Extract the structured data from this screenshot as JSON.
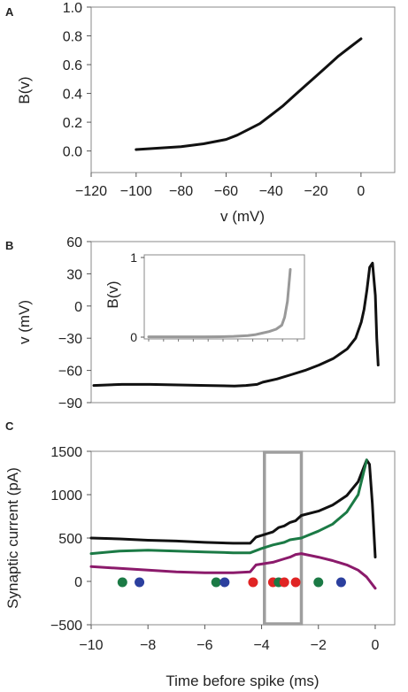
{
  "chart_data": [
    {
      "panel": "A",
      "type": "line",
      "title": "",
      "xlabel": "v (mV)",
      "ylabel": "B(v)",
      "xlim": [
        -120,
        15
      ],
      "ylim": [
        -0.15,
        1.0
      ],
      "xticks": [
        -120,
        -100,
        -80,
        -60,
        -40,
        -20,
        0
      ],
      "yticks": [
        0.0,
        0.2,
        0.4,
        0.6,
        0.8,
        1.0
      ],
      "xtick_labels": [
        "-120",
        "-100",
        "-80",
        "-60",
        "-40",
        "-20",
        "0"
      ],
      "ytick_labels": [
        "0.0",
        "0.2",
        "0.4",
        "0.6",
        "0.8",
        "1.0"
      ],
      "grid": false,
      "series": [
        {
          "color": "#111111",
          "x": [
            -100,
            -90,
            -80,
            -70,
            -60,
            -55,
            -50,
            -45,
            -40,
            -35,
            -30,
            -25,
            -20,
            -15,
            -10,
            -5,
            0
          ],
          "y": [
            0.01,
            0.02,
            0.03,
            0.05,
            0.08,
            0.11,
            0.15,
            0.19,
            0.25,
            0.31,
            0.38,
            0.45,
            0.52,
            0.59,
            0.66,
            0.72,
            0.78
          ]
        }
      ]
    },
    {
      "panel": "B",
      "type": "line",
      "title": "",
      "xlabel": "",
      "ylabel": "v (mV)",
      "xlim": [
        -10,
        0.5
      ],
      "ylim": [
        -90,
        60
      ],
      "yticks": [
        -90,
        -60,
        -30,
        0,
        30,
        60
      ],
      "ytick_labels": [
        "-90",
        "-60",
        "-30",
        "0",
        "30",
        "60"
      ],
      "grid": false,
      "series": [
        {
          "color": "#111111",
          "x": [
            -10,
            -9,
            -8,
            -7,
            -6,
            -5,
            -4.6,
            -4.2,
            -4,
            -3.5,
            -3,
            -2.5,
            -2,
            -1.5,
            -1,
            -0.7,
            -0.5,
            -0.4,
            -0.3,
            -0.2,
            -0.1,
            0,
            0.05,
            0.1
          ],
          "y": [
            -74,
            -73,
            -73,
            -73.5,
            -74,
            -74.5,
            -74,
            -73,
            -71,
            -68,
            -64,
            -60,
            -55,
            -49,
            -40,
            -30,
            -15,
            -3,
            15,
            36,
            40,
            10,
            -30,
            -55
          ]
        }
      ],
      "inset": {
        "ylabel": "B(v)",
        "ylim": [
          0,
          1
        ],
        "yticks": [
          0,
          1
        ],
        "ytick_labels": [
          "0",
          "1"
        ],
        "xlim": [
          -10,
          0.5
        ],
        "series": [
          {
            "color": "#999999",
            "x": [
              -10,
              -8,
              -6,
              -5,
              -4,
              -3,
              -2.5,
              -2,
              -1.5,
              -1,
              -0.6,
              -0.4,
              -0.2,
              0
            ],
            "y": [
              0.005,
              0.005,
              0.005,
              0.006,
              0.01,
              0.02,
              0.03,
              0.05,
              0.07,
              0.1,
              0.15,
              0.25,
              0.45,
              0.85
            ]
          }
        ]
      }
    },
    {
      "panel": "C",
      "type": "line",
      "title": "",
      "xlabel": "Time before spike (ms)",
      "ylabel": "Synaptic current (pA)",
      "xlim": [
        -10,
        0.5
      ],
      "ylim": [
        -500,
        1500
      ],
      "xticks": [
        -10,
        -8,
        -6,
        -4,
        -2,
        0
      ],
      "yticks": [
        -500,
        0,
        500,
        1000,
        1500
      ],
      "xtick_labels": [
        "-10",
        "-8",
        "-6",
        "-4",
        "-2",
        "0"
      ],
      "ytick_labels": [
        "-500",
        "0",
        "500",
        "1000",
        "1500"
      ],
      "grid": false,
      "series": [
        {
          "color": "#111111",
          "x": [
            -10,
            -9,
            -8,
            -7,
            -6,
            -5,
            -4.4,
            -4.2,
            -4.0,
            -3.8,
            -3.6,
            -3.4,
            -3.2,
            -3.0,
            -2.8,
            -2.6,
            -2.0,
            -1.5,
            -1.0,
            -0.6,
            -0.3,
            -0.2,
            -0.1,
            0
          ],
          "y": [
            500,
            490,
            475,
            465,
            450,
            440,
            440,
            510,
            530,
            550,
            570,
            620,
            640,
            680,
            700,
            760,
            810,
            880,
            990,
            1150,
            1400,
            1350,
            900,
            280
          ]
        },
        {
          "color": "#1b7a45",
          "x": [
            -10,
            -9,
            -8,
            -7,
            -6,
            -5,
            -4.4,
            -4.0,
            -3.6,
            -3.2,
            -3.0,
            -2.6,
            -2.0,
            -1.5,
            -1.0,
            -0.6,
            -0.3
          ],
          "y": [
            320,
            350,
            360,
            350,
            340,
            330,
            330,
            380,
            420,
            450,
            480,
            500,
            580,
            660,
            800,
            1000,
            1400
          ]
        },
        {
          "color": "#8b1a6b",
          "x": [
            -10,
            -9,
            -8,
            -7,
            -6,
            -5,
            -4.4,
            -4.2,
            -4.0,
            -3.6,
            -3.2,
            -3.0,
            -2.8,
            -2.6,
            -2.0,
            -1.5,
            -1.0,
            -0.6,
            -0.3,
            0
          ],
          "y": [
            170,
            150,
            130,
            110,
            100,
            100,
            110,
            190,
            200,
            220,
            260,
            280,
            310,
            320,
            280,
            240,
            190,
            130,
            50,
            -80
          ]
        }
      ],
      "markers": [
        {
          "x": -8.9,
          "y": -10,
          "color": "#1b7a45"
        },
        {
          "x": -8.3,
          "y": -10,
          "color": "#2b3f9e"
        },
        {
          "x": -5.6,
          "y": -10,
          "color": "#1b7a45"
        },
        {
          "x": -5.3,
          "y": -10,
          "color": "#2b3f9e"
        },
        {
          "x": -4.3,
          "y": -10,
          "color": "#e02424"
        },
        {
          "x": -3.6,
          "y": -10,
          "color": "#e02424"
        },
        {
          "x": -3.4,
          "y": -10,
          "color": "#1b7a45"
        },
        {
          "x": -3.2,
          "y": -10,
          "color": "#e02424"
        },
        {
          "x": -2.8,
          "y": -10,
          "color": "#e02424"
        },
        {
          "x": -2.0,
          "y": -10,
          "color": "#1b7a45"
        },
        {
          "x": -1.2,
          "y": -10,
          "color": "#2b3f9e"
        }
      ],
      "highlight_box": {
        "x0": -3.9,
        "x1": -2.6,
        "y0": -500,
        "y1": 1500,
        "color": "#9e9e9e"
      }
    }
  ]
}
